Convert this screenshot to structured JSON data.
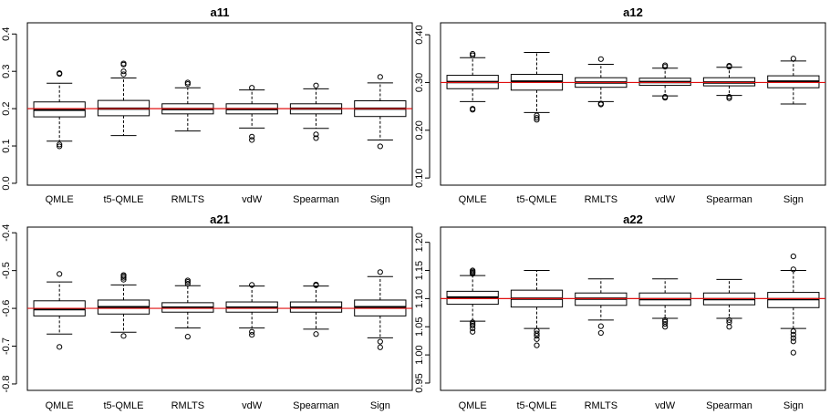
{
  "chart_data": [
    {
      "type": "boxplot",
      "title": "a11",
      "categories": [
        "QMLE",
        "t5-QMLE",
        "RMLTS",
        "vdW",
        "Spearman",
        "Sign"
      ],
      "yticks": [
        "0.0",
        "0.1",
        "0.2",
        "0.3",
        "0.4"
      ],
      "ylim": [
        -0.005,
        0.43
      ],
      "reference_line": 0.2,
      "boxes": [
        {
          "min": 0.113,
          "q1": 0.178,
          "median": 0.197,
          "q3": 0.218,
          "max": 0.268,
          "outliers": [
            0.295,
            0.293,
            0.104,
            0.099
          ]
        },
        {
          "min": 0.128,
          "q1": 0.181,
          "median": 0.2,
          "q3": 0.222,
          "max": 0.282,
          "outliers": [
            0.321,
            0.318,
            0.3,
            0.292
          ]
        },
        {
          "min": 0.14,
          "q1": 0.186,
          "median": 0.199,
          "q3": 0.213,
          "max": 0.256,
          "outliers": [
            0.27,
            0.266
          ]
        },
        {
          "min": 0.148,
          "q1": 0.186,
          "median": 0.199,
          "q3": 0.213,
          "max": 0.25,
          "outliers": [
            0.256,
            0.125,
            0.116
          ]
        },
        {
          "min": 0.147,
          "q1": 0.186,
          "median": 0.2,
          "q3": 0.213,
          "max": 0.253,
          "outliers": [
            0.262,
            0.131,
            0.121
          ]
        },
        {
          "min": 0.116,
          "q1": 0.179,
          "median": 0.2,
          "q3": 0.221,
          "max": 0.269,
          "outliers": [
            0.285,
            0.099
          ]
        }
      ]
    },
    {
      "type": "boxplot",
      "title": "a12",
      "categories": [
        "QMLE",
        "t5-QMLE",
        "RMLTS",
        "vdW",
        "Spearman",
        "Sign"
      ],
      "yticks": [
        "0.10",
        "0.20",
        "0.30",
        "0.40"
      ],
      "ylim": [
        0.085,
        0.425
      ],
      "reference_line": 0.3,
      "boxes": [
        {
          "min": 0.26,
          "q1": 0.287,
          "median": 0.301,
          "q3": 0.315,
          "max": 0.352,
          "outliers": [
            0.36,
            0.357,
            0.245,
            0.243
          ]
        },
        {
          "min": 0.237,
          "q1": 0.284,
          "median": 0.302,
          "q3": 0.317,
          "max": 0.363,
          "outliers": [
            0.231,
            0.226,
            0.222
          ]
        },
        {
          "min": 0.26,
          "q1": 0.29,
          "median": 0.3,
          "q3": 0.31,
          "max": 0.338,
          "outliers": [
            0.349,
            0.256,
            0.254
          ]
        },
        {
          "min": 0.272,
          "q1": 0.294,
          "median": 0.301,
          "q3": 0.309,
          "max": 0.33,
          "outliers": [
            0.336,
            0.333,
            0.27,
            0.268
          ]
        },
        {
          "min": 0.273,
          "q1": 0.293,
          "median": 0.3,
          "q3": 0.31,
          "max": 0.332,
          "outliers": [
            0.335,
            0.333,
            0.27,
            0.267
          ]
        },
        {
          "min": 0.255,
          "q1": 0.289,
          "median": 0.302,
          "q3": 0.314,
          "max": 0.345,
          "outliers": [
            0.35
          ]
        }
      ]
    },
    {
      "type": "boxplot",
      "title": "a21",
      "categories": [
        "QMLE",
        "t5-QMLE",
        "RMLTS",
        "vdW",
        "Spearman",
        "Sign"
      ],
      "yticks": [
        "-0.8",
        "-0.7",
        "-0.6",
        "-0.5",
        "-0.4"
      ],
      "ylim": [
        -0.817,
        -0.385
      ],
      "reference_line": -0.6,
      "boxes": [
        {
          "min": -0.668,
          "q1": -0.62,
          "median": -0.602,
          "q3": -0.58,
          "max": -0.53,
          "outliers": [
            -0.509,
            -0.702
          ]
        },
        {
          "min": -0.663,
          "q1": -0.615,
          "median": -0.597,
          "q3": -0.578,
          "max": -0.538,
          "outliers": [
            -0.512,
            -0.515,
            -0.519,
            -0.524,
            -0.673
          ]
        },
        {
          "min": -0.652,
          "q1": -0.61,
          "median": -0.598,
          "q3": -0.585,
          "max": -0.54,
          "outliers": [
            -0.526,
            -0.53,
            -0.535,
            -0.675
          ]
        },
        {
          "min": -0.652,
          "q1": -0.61,
          "median": -0.598,
          "q3": -0.583,
          "max": -0.541,
          "outliers": [
            -0.538,
            -0.662,
            -0.67
          ]
        },
        {
          "min": -0.655,
          "q1": -0.61,
          "median": -0.598,
          "q3": -0.583,
          "max": -0.541,
          "outliers": [
            -0.539,
            -0.537,
            -0.668
          ]
        },
        {
          "min": -0.678,
          "q1": -0.62,
          "median": -0.597,
          "q3": -0.578,
          "max": -0.516,
          "outliers": [
            -0.504,
            -0.688,
            -0.703
          ]
        }
      ]
    },
    {
      "type": "boxplot",
      "title": "a22",
      "categories": [
        "QMLE",
        "t5-QMLE",
        "RMLTS",
        "vdW",
        "Spearman",
        "Sign"
      ],
      "yticks": [
        "0.95",
        "1.00",
        "1.05",
        "1.10",
        "1.15",
        "1.20"
      ],
      "ylim": [
        0.937,
        1.227
      ],
      "reference_line": 1.1,
      "boxes": [
        {
          "min": 1.06,
          "q1": 1.09,
          "median": 1.102,
          "q3": 1.113,
          "max": 1.141,
          "outliers": [
            1.15,
            1.148,
            1.146,
            1.144,
            1.058,
            1.055,
            1.052,
            1.047,
            1.041
          ]
        },
        {
          "min": 1.047,
          "q1": 1.085,
          "median": 1.1,
          "q3": 1.115,
          "max": 1.15,
          "outliers": [
            1.043,
            1.038,
            1.034,
            1.028,
            1.017
          ]
        },
        {
          "min": 1.062,
          "q1": 1.088,
          "median": 1.1,
          "q3": 1.11,
          "max": 1.135,
          "outliers": [
            1.051,
            1.039
          ]
        },
        {
          "min": 1.065,
          "q1": 1.088,
          "median": 1.099,
          "q3": 1.11,
          "max": 1.135,
          "outliers": [
            1.062,
            1.059,
            1.055,
            1.05
          ]
        },
        {
          "min": 1.065,
          "q1": 1.089,
          "median": 1.099,
          "q3": 1.11,
          "max": 1.134,
          "outliers": [
            1.062,
            1.058,
            1.05
          ]
        },
        {
          "min": 1.047,
          "q1": 1.084,
          "median": 1.099,
          "q3": 1.111,
          "max": 1.15,
          "outliers": [
            1.175,
            1.152,
            1.042,
            1.036,
            1.03,
            1.024,
            1.004
          ]
        }
      ]
    }
  ]
}
